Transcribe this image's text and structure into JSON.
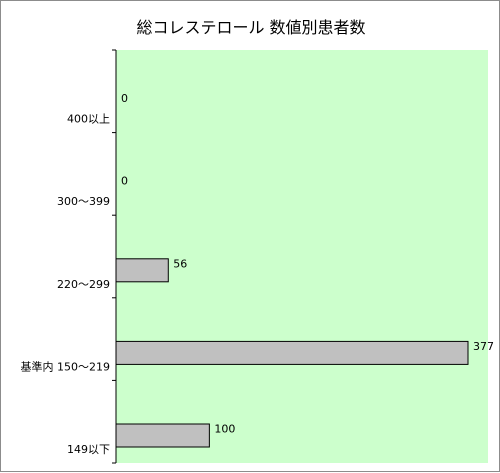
{
  "chart_data": {
    "type": "bar",
    "orientation": "horizontal",
    "title": "総コレステロール 数値別患者数",
    "xlabel": "",
    "ylabel": "",
    "categories": [
      "400以上",
      "300～399",
      "220～299",
      "基準内 150～219",
      "149以下"
    ],
    "values": [
      0,
      0,
      56,
      377,
      100
    ],
    "xlim": [
      0,
      377
    ],
    "grid": false,
    "legend": "none",
    "data_labels": true,
    "colors": {
      "plot_background": "#ccffcc",
      "bar_fill": "#c0c0c0",
      "bar_stroke": "#000000",
      "axis": "#000000"
    }
  }
}
